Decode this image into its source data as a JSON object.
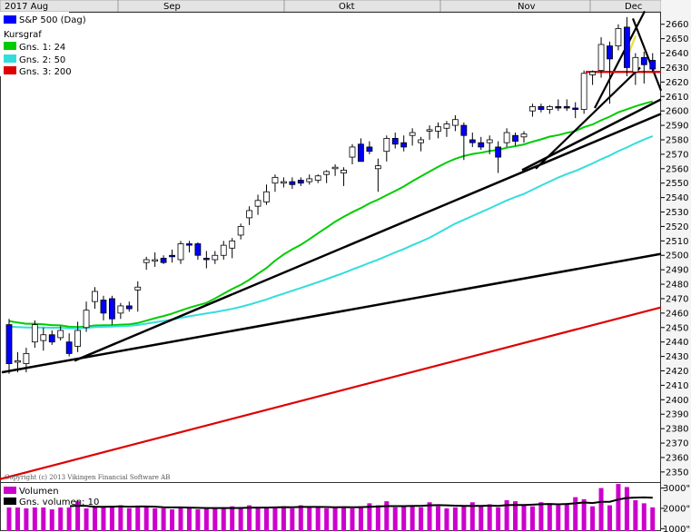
{
  "chart_data": {
    "type": "candlestick",
    "months": [
      "2017 Aug",
      "Sep",
      "Okt",
      "Nov",
      "Dec"
    ],
    "price_axis": {
      "ylim": [
        2343,
        2668
      ],
      "ticks": [
        2350,
        2360,
        2370,
        2380,
        2390,
        2400,
        2410,
        2420,
        2430,
        2440,
        2450,
        2460,
        2470,
        2480,
        2490,
        2500,
        2510,
        2520,
        2530,
        2540,
        2550,
        2560,
        2570,
        2580,
        2590,
        2600,
        2610,
        2620,
        2630,
        2640,
        2650,
        2660
      ]
    },
    "volume_axis": {
      "ylim": [
        880,
        3250
      ],
      "ticks": [
        1000,
        2000,
        3000
      ],
      "tick_labels": [
        "1000\"",
        "2000\"",
        "3000\""
      ]
    },
    "legend_price": [
      {
        "label": "S&P 500 (Dag)",
        "color": "#0000ff"
      },
      {
        "label": "Kursgraf",
        "color": null
      },
      {
        "label": "Gns. 1: 24",
        "color": "#00cc00"
      },
      {
        "label": "Gns. 2: 50",
        "color": "#33dddd"
      },
      {
        "label": "Gns. 3: 200",
        "color": "#dd0000"
      }
    ],
    "legend_volume": [
      {
        "label": "Volumen",
        "color": "#cc00cc"
      },
      {
        "label": "Gns. volumen: 10",
        "color": "#000000"
      }
    ],
    "copyright": "Copyright (c) 2013 Vikingen Financial Software AB",
    "candles": [
      {
        "o": 2452,
        "h": 2456,
        "l": 2418,
        "c": 2425
      },
      {
        "o": 2426,
        "h": 2433,
        "l": 2419,
        "c": 2427
      },
      {
        "o": 2425,
        "h": 2436,
        "l": 2419,
        "c": 2432
      },
      {
        "o": 2440,
        "h": 2455,
        "l": 2436,
        "c": 2452
      },
      {
        "o": 2441,
        "h": 2450,
        "l": 2434,
        "c": 2445
      },
      {
        "o": 2445,
        "h": 2448,
        "l": 2438,
        "c": 2440
      },
      {
        "o": 2443,
        "h": 2451,
        "l": 2441,
        "c": 2448
      },
      {
        "o": 2440,
        "h": 2446,
        "l": 2430,
        "c": 2432
      },
      {
        "o": 2437,
        "h": 2454,
        "l": 2433,
        "c": 2448
      },
      {
        "o": 2450,
        "h": 2468,
        "l": 2447,
        "c": 2462
      },
      {
        "o": 2468,
        "h": 2478,
        "l": 2463,
        "c": 2475
      },
      {
        "o": 2469,
        "h": 2472,
        "l": 2455,
        "c": 2460
      },
      {
        "o": 2470,
        "h": 2472,
        "l": 2452,
        "c": 2456
      },
      {
        "o": 2460,
        "h": 2467,
        "l": 2456,
        "c": 2465
      },
      {
        "o": 2465,
        "h": 2468,
        "l": 2461,
        "c": 2463
      },
      {
        "o": 2476,
        "h": 2482,
        "l": 2461,
        "c": 2478
      },
      {
        "o": 2495,
        "h": 2499,
        "l": 2490,
        "c": 2497
      },
      {
        "o": 2496,
        "h": 2502,
        "l": 2492,
        "c": 2497
      },
      {
        "o": 2498,
        "h": 2500,
        "l": 2494,
        "c": 2495
      },
      {
        "o": 2500,
        "h": 2504,
        "l": 2495,
        "c": 2499
      },
      {
        "o": 2497,
        "h": 2510,
        "l": 2494,
        "c": 2508
      },
      {
        "o": 2508,
        "h": 2510,
        "l": 2502,
        "c": 2507
      },
      {
        "o": 2508,
        "h": 2509,
        "l": 2497,
        "c": 2500
      },
      {
        "o": 2498,
        "h": 2503,
        "l": 2491,
        "c": 2497
      },
      {
        "o": 2497,
        "h": 2503,
        "l": 2494,
        "c": 2500
      },
      {
        "o": 2500,
        "h": 2510,
        "l": 2497,
        "c": 2507
      },
      {
        "o": 2505,
        "h": 2512,
        "l": 2498,
        "c": 2510
      },
      {
        "o": 2514,
        "h": 2522,
        "l": 2511,
        "c": 2520
      },
      {
        "o": 2526,
        "h": 2534,
        "l": 2521,
        "c": 2531
      },
      {
        "o": 2534,
        "h": 2542,
        "l": 2528,
        "c": 2538
      },
      {
        "o": 2537,
        "h": 2549,
        "l": 2535,
        "c": 2544
      },
      {
        "o": 2550,
        "h": 2556,
        "l": 2544,
        "c": 2554
      },
      {
        "o": 2550,
        "h": 2554,
        "l": 2547,
        "c": 2551
      },
      {
        "o": 2551,
        "h": 2554,
        "l": 2546,
        "c": 2549
      },
      {
        "o": 2552,
        "h": 2554,
        "l": 2548,
        "c": 2550
      },
      {
        "o": 2551,
        "h": 2556,
        "l": 2549,
        "c": 2553
      },
      {
        "o": 2552,
        "h": 2556,
        "l": 2550,
        "c": 2555
      },
      {
        "o": 2556,
        "h": 2559,
        "l": 2550,
        "c": 2558
      },
      {
        "o": 2560,
        "h": 2563,
        "l": 2555,
        "c": 2561
      },
      {
        "o": 2557,
        "h": 2561,
        "l": 2548,
        "c": 2559
      },
      {
        "o": 2568,
        "h": 2577,
        "l": 2563,
        "c": 2575
      },
      {
        "o": 2577,
        "h": 2581,
        "l": 2565,
        "c": 2565
      },
      {
        "o": 2575,
        "h": 2579,
        "l": 2570,
        "c": 2572
      },
      {
        "o": 2560,
        "h": 2567,
        "l": 2544,
        "c": 2562
      },
      {
        "o": 2572,
        "h": 2583,
        "l": 2565,
        "c": 2581
      },
      {
        "o": 2581,
        "h": 2585,
        "l": 2574,
        "c": 2577
      },
      {
        "o": 2578,
        "h": 2583,
        "l": 2572,
        "c": 2575
      },
      {
        "o": 2583,
        "h": 2588,
        "l": 2576,
        "c": 2585
      },
      {
        "o": 2578,
        "h": 2582,
        "l": 2572,
        "c": 2580
      },
      {
        "o": 2586,
        "h": 2590,
        "l": 2580,
        "c": 2587
      },
      {
        "o": 2586,
        "h": 2592,
        "l": 2581,
        "c": 2589
      },
      {
        "o": 2588,
        "h": 2593,
        "l": 2582,
        "c": 2591
      },
      {
        "o": 2590,
        "h": 2597,
        "l": 2586,
        "c": 2594
      },
      {
        "o": 2590,
        "h": 2592,
        "l": 2566,
        "c": 2583
      },
      {
        "o": 2580,
        "h": 2585,
        "l": 2575,
        "c": 2578
      },
      {
        "o": 2578,
        "h": 2582,
        "l": 2573,
        "c": 2575
      },
      {
        "o": 2578,
        "h": 2583,
        "l": 2570,
        "c": 2580
      },
      {
        "o": 2575,
        "h": 2579,
        "l": 2557,
        "c": 2568
      },
      {
        "o": 2578,
        "h": 2588,
        "l": 2575,
        "c": 2585
      },
      {
        "o": 2583,
        "h": 2585,
        "l": 2576,
        "c": 2579
      },
      {
        "o": 2582,
        "h": 2586,
        "l": 2578,
        "c": 2584
      },
      {
        "o": 2600,
        "h": 2605,
        "l": 2596,
        "c": 2603
      },
      {
        "o": 2603,
        "h": 2605,
        "l": 2599,
        "c": 2601
      },
      {
        "o": 2601,
        "h": 2604,
        "l": 2598,
        "c": 2603
      },
      {
        "o": 2603,
        "h": 2608,
        "l": 2600,
        "c": 2602
      },
      {
        "o": 2603,
        "h": 2608,
        "l": 2600,
        "c": 2602
      },
      {
        "o": 2602,
        "h": 2606,
        "l": 2595,
        "c": 2601
      },
      {
        "o": 2601,
        "h": 2628,
        "l": 2598,
        "c": 2626
      },
      {
        "o": 2625,
        "h": 2628,
        "l": 2618,
        "c": 2627
      },
      {
        "o": 2628,
        "h": 2651,
        "l": 2623,
        "c": 2646
      },
      {
        "o": 2645,
        "h": 2648,
        "l": 2605,
        "c": 2636
      },
      {
        "o": 2645,
        "h": 2660,
        "l": 2642,
        "c": 2657
      },
      {
        "o": 2658,
        "h": 2665,
        "l": 2624,
        "c": 2630
      },
      {
        "o": 2627,
        "h": 2640,
        "l": 2618,
        "c": 2637
      },
      {
        "o": 2637,
        "h": 2641,
        "l": 2619,
        "c": 2632
      },
      {
        "o": 2635,
        "h": 2640,
        "l": 2627,
        "c": 2629
      }
    ],
    "volume": [
      2450,
      2100,
      2000,
      2050,
      2150,
      1950,
      2100,
      2050,
      2350,
      2000,
      2050,
      2050,
      2100,
      2150,
      2000,
      2050,
      2100,
      2000,
      2000,
      1950,
      2050,
      2000,
      1950,
      2050,
      2000,
      2050,
      2100,
      2050,
      2150,
      2000,
      2050,
      2050,
      2100,
      2000,
      2150,
      2050,
      2100,
      2000,
      2050,
      2050,
      2000,
      2100,
      2250,
      2150,
      2350,
      2050,
      2100,
      2150,
      2050,
      2300,
      2100,
      2000,
      2050,
      2100,
      2300,
      2100,
      2200,
      2050,
      2400,
      2350,
      2150,
      2100,
      2300,
      2200,
      2150,
      2250,
      2550,
      2450,
      2100,
      3000,
      2150,
      3200,
      3050,
      2400,
      2250,
      2050
    ]
  }
}
